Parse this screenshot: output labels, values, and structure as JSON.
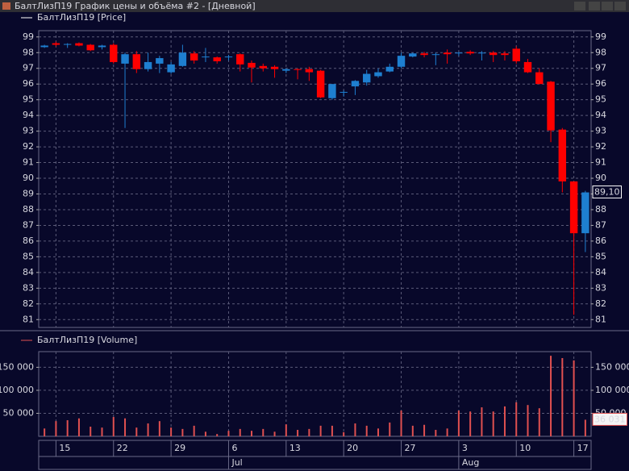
{
  "window": {
    "title": "БалтЛизП19 График цены и объёма #2 - [Дневной]"
  },
  "x_axis": {
    "categories": [
      null,
      "15",
      null,
      null,
      null,
      null,
      "22",
      null,
      null,
      null,
      null,
      "29",
      null,
      null,
      null,
      null,
      "6",
      null,
      null,
      null,
      null,
      "13",
      null,
      null,
      null,
      null,
      "20",
      null,
      null,
      null,
      null,
      "27",
      null,
      null,
      null,
      null,
      "3",
      null,
      null,
      null,
      null,
      "10",
      null,
      null,
      null,
      null,
      "17",
      null
    ],
    "months": [
      null,
      null,
      null,
      null,
      null,
      null,
      null,
      null,
      null,
      null,
      null,
      null,
      null,
      null,
      null,
      null,
      "Jul",
      null,
      null,
      null,
      null,
      null,
      null,
      null,
      null,
      null,
      null,
      null,
      null,
      null,
      null,
      null,
      null,
      null,
      null,
      null,
      "Aug",
      null,
      null,
      null,
      null,
      null,
      null,
      null,
      null,
      null,
      null,
      null
    ]
  },
  "chart_data": [
    {
      "type": "candlestick",
      "legend": "БалтЛизП19 [Price]",
      "up_color": "#1e7fd0",
      "down_color": "#ff0000",
      "grid": true,
      "open": [
        98.35,
        98.6,
        98.5,
        98.6,
        98.5,
        98.35,
        98.5,
        97.3,
        97.9,
        96.95,
        97.3,
        96.75,
        97.15,
        97.95,
        97.7,
        97.7,
        97.7,
        97.9,
        97.35,
        97.15,
        97.1,
        96.85,
        96.95,
        96.95,
        96.85,
        95.1,
        95.45,
        95.85,
        96.1,
        96.5,
        96.8,
        97.1,
        97.75,
        97.95,
        97.85,
        98.0,
        97.95,
        98.05,
        97.95,
        98.0,
        97.95,
        98.25,
        97.4,
        96.75,
        96.15,
        93.1,
        89.8,
        86.5
      ],
      "high": [
        98.5,
        98.7,
        98.6,
        98.65,
        98.55,
        98.5,
        98.6,
        98.0,
        98.1,
        98.0,
        97.8,
        97.4,
        98.5,
        98.1,
        98.3,
        97.75,
        97.85,
        97.95,
        97.5,
        97.3,
        97.2,
        97.0,
        97.0,
        97.1,
        96.9,
        96.0,
        95.6,
        96.25,
        96.9,
        97.0,
        97.3,
        98.0,
        98.0,
        98.05,
        98.0,
        98.2,
        98.05,
        98.15,
        98.1,
        98.1,
        98.1,
        98.4,
        97.6,
        97.0,
        96.2,
        93.2,
        89.8,
        89.2
      ],
      "low": [
        98.3,
        98.4,
        98.3,
        98.4,
        98.1,
        98.2,
        97.3,
        93.2,
        96.7,
        96.8,
        96.7,
        96.65,
        97.1,
        97.3,
        97.4,
        97.3,
        97.5,
        96.8,
        96.1,
        96.8,
        96.4,
        96.7,
        96.3,
        96.2,
        95.1,
        95.0,
        95.2,
        95.3,
        95.9,
        96.4,
        96.75,
        97.0,
        97.7,
        97.7,
        97.2,
        97.3,
        97.8,
        97.85,
        97.5,
        97.4,
        97.5,
        97.3,
        96.7,
        96.0,
        92.3,
        89.1,
        81.3,
        85.3
      ],
      "close": [
        98.45,
        98.5,
        98.55,
        98.45,
        98.15,
        98.45,
        97.4,
        97.9,
        96.95,
        97.4,
        97.65,
        97.25,
        98.0,
        97.5,
        97.75,
        97.45,
        97.75,
        97.25,
        97.05,
        97.0,
        96.95,
        96.95,
        96.9,
        96.75,
        95.15,
        96.0,
        95.5,
        96.2,
        96.65,
        96.75,
        97.1,
        97.8,
        97.95,
        97.85,
        97.9,
        97.9,
        98.0,
        97.95,
        98.0,
        97.85,
        97.85,
        97.45,
        96.75,
        96.0,
        93.05,
        89.8,
        86.5,
        89.1
      ],
      "last_label": "89,10",
      "ylim": [
        80.5,
        99.4
      ],
      "yticks": [
        81,
        82,
        83,
        84,
        85,
        86,
        87,
        88,
        89,
        90,
        91,
        92,
        93,
        94,
        95,
        96,
        97,
        98,
        99
      ]
    },
    {
      "type": "bar",
      "legend": "БалтЛизП19 [Volume]",
      "color": "#e05050",
      "grid": true,
      "values": [
        17000,
        33000,
        35000,
        39000,
        21000,
        19000,
        42000,
        39000,
        19000,
        28000,
        33000,
        19000,
        16000,
        23000,
        10000,
        5000,
        12000,
        16000,
        12000,
        16000,
        10000,
        26000,
        14000,
        16000,
        23000,
        23000,
        9000,
        28000,
        23000,
        17000,
        30000,
        56000,
        23000,
        25000,
        14000,
        17000,
        56000,
        54000,
        63000,
        54000,
        65000,
        74000,
        68000,
        61000,
        175000,
        170000,
        165000,
        36031
      ],
      "last_label": "36 031",
      "ylim": [
        0,
        184000
      ],
      "yticks": [
        {
          "value": 50000,
          "label": "50 000"
        },
        {
          "value": 100000,
          "label": "100 000"
        },
        {
          "value": 150000,
          "label": "150 000"
        }
      ]
    }
  ]
}
